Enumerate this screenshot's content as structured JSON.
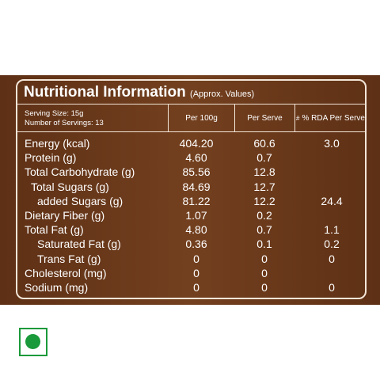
{
  "header": {
    "title": "Nutritional Information",
    "subtitle": "(Approx. Values)"
  },
  "serving": {
    "size": "Serving Size: 15g",
    "count": "Number of Servings: 13"
  },
  "columns": {
    "per100g": "Per 100g",
    "perServe": "Per Serve",
    "rdaMark": "#",
    "rda": "% RDA Per Serve"
  },
  "table": {
    "rows": [
      {
        "name": "Energy (kcal)",
        "per100g": "404.20",
        "perServe": "60.6",
        "rda": "3.0"
      },
      {
        "name": "Protein (g)",
        "per100g": "4.60",
        "perServe": "0.7"
      },
      {
        "name": "Total Carbohydrate (g)",
        "per100g": "85.56",
        "perServe": "12.8"
      },
      {
        "name": "Total Sugars (g)",
        "per100g": "84.69",
        "perServe": "12.7"
      },
      {
        "name": "added Sugars (g)",
        "per100g": "81.22",
        "perServe": "12.2",
        "rda": "24.4"
      },
      {
        "name": "Dietary Fiber (g)",
        "per100g": "1.07",
        "perServe": "0.2"
      },
      {
        "name": "Total Fat (g)",
        "per100g": "4.80",
        "perServe": "0.7",
        "rda": "1.1"
      },
      {
        "name": "Saturated Fat (g)",
        "per100g": "0.36",
        "perServe": "0.1",
        "rda": "0.2"
      },
      {
        "name": "Trans Fat (g)",
        "per100g": "0",
        "perServe": "0",
        "rda": "0"
      },
      {
        "name": "Cholesterol (mg)",
        "per100g": "0",
        "perServe": "0"
      },
      {
        "name": "Sodium (mg)",
        "per100g": "0",
        "perServe": "0",
        "rda": "0"
      }
    ]
  }
}
